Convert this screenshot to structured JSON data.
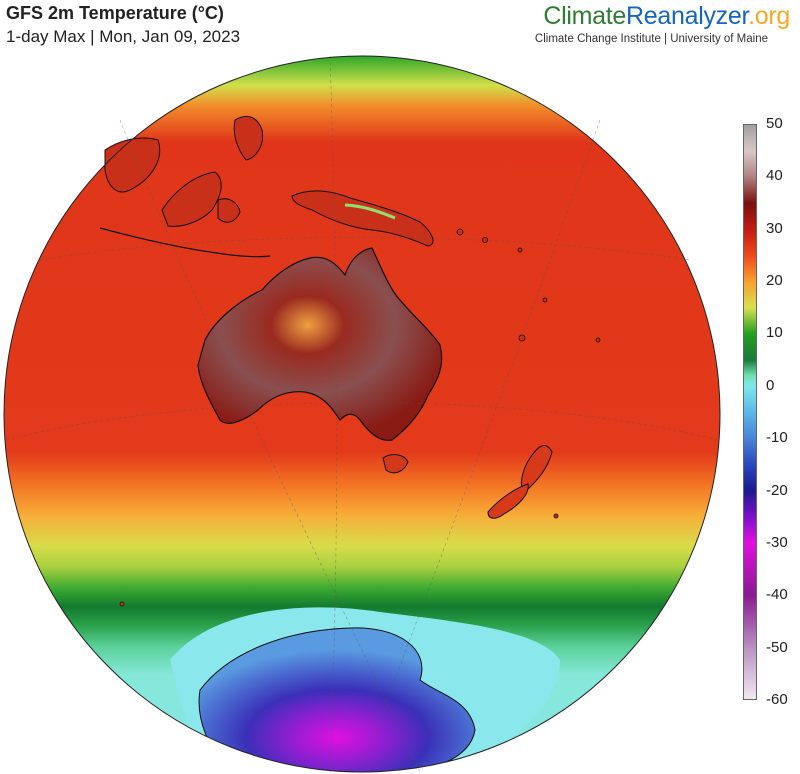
{
  "header": {
    "title": "GFS 2m Temperature (°C)",
    "subtitle": "1-day Max | Mon, Jan 09, 2023"
  },
  "brand": {
    "part1": "Climate",
    "part2": "Reanalyzer",
    "part3": ".org",
    "tagline": "Climate Change Institute | University of Maine",
    "colors": {
      "climate": "#2e7d32",
      "reanalyzer": "#1565c0",
      "org": "#f9a825"
    }
  },
  "map": {
    "projection": "orthographic",
    "regions": [
      "Australia",
      "Indonesia",
      "New Guinea",
      "New Zealand",
      "Tasmania",
      "Antarctica"
    ]
  },
  "colorbar": {
    "min": -60,
    "max": 50,
    "ticks": [
      "50",
      "40",
      "30",
      "20",
      "10",
      "0",
      "-10",
      "-20",
      "-30",
      "-40",
      "-50",
      "-60"
    ],
    "tick_values": [
      50,
      40,
      30,
      20,
      10,
      0,
      -10,
      -20,
      -30,
      -40,
      -50,
      -60
    ],
    "stops": [
      {
        "value": 50,
        "color": "#a0a0a0"
      },
      {
        "value": 45,
        "color": "#d8c8c8"
      },
      {
        "value": 40,
        "color": "#b08080"
      },
      {
        "value": 35,
        "color": "#7a1010"
      },
      {
        "value": 30,
        "color": "#c01c12"
      },
      {
        "value": 25,
        "color": "#ee4a1a"
      },
      {
        "value": 20,
        "color": "#f7a030"
      },
      {
        "value": 15,
        "color": "#d8e050"
      },
      {
        "value": 10,
        "color": "#22a020"
      },
      {
        "value": 5,
        "color": "#1a7a3a"
      },
      {
        "value": 2,
        "color": "#70e0b0"
      },
      {
        "value": 0,
        "color": "#80e8ea"
      },
      {
        "value": -5,
        "color": "#5ab8e8"
      },
      {
        "value": -10,
        "color": "#4a84d8"
      },
      {
        "value": -15,
        "color": "#2a48c0"
      },
      {
        "value": -20,
        "color": "#1c1a90"
      },
      {
        "value": -25,
        "color": "#7a10c8"
      },
      {
        "value": -30,
        "color": "#e010e0"
      },
      {
        "value": -40,
        "color": "#8a1a90"
      },
      {
        "value": -50,
        "color": "#b890c0"
      },
      {
        "value": -60,
        "color": "#f0e8f0"
      }
    ]
  }
}
